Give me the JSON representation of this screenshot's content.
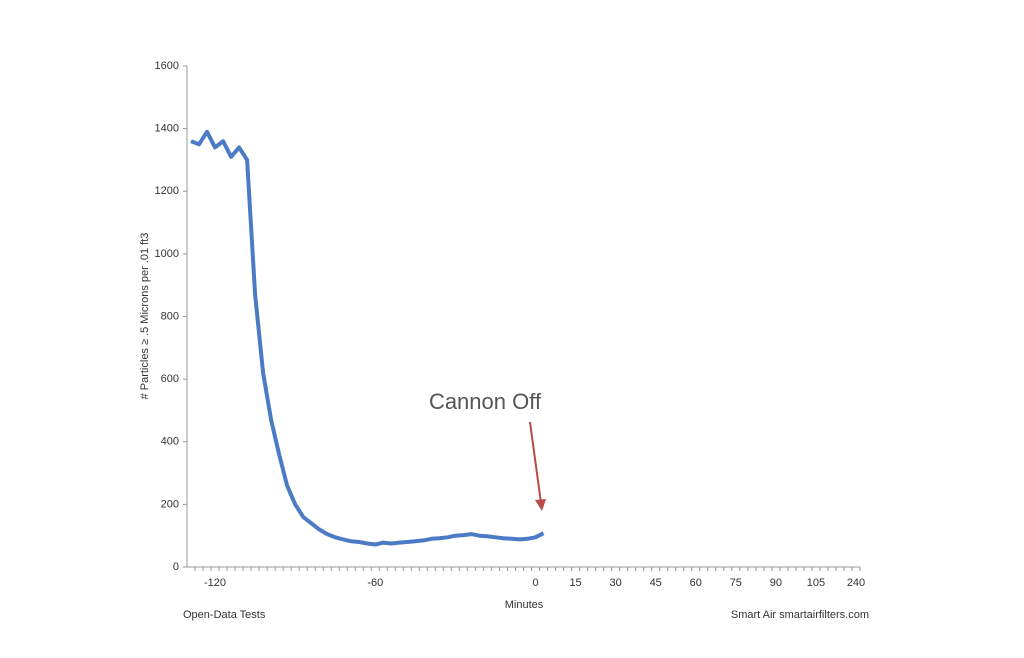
{
  "chart_data": {
    "type": "line",
    "y_label": "# Particles ≥ .5 Microns per .01 ft3",
    "x_label": "Minutes",
    "annotation": "Cannon Off",
    "footer_left": "Open-Data Tests",
    "footer_right": "Smart Air smartairfilters.com",
    "categories": [
      null,
      null,
      null,
      "-120",
      null,
      null,
      null,
      null,
      null,
      null,
      null,
      null,
      null,
      null,
      null,
      null,
      null,
      null,
      null,
      null,
      null,
      null,
      null,
      "-60",
      null,
      null,
      null,
      null,
      null,
      null,
      null,
      null,
      null,
      null,
      null,
      null,
      null,
      null,
      null,
      null,
      null,
      null,
      null,
      "0",
      null,
      null,
      null,
      null,
      "15",
      null,
      null,
      null,
      null,
      "30",
      null,
      null,
      null,
      null,
      "45",
      null,
      null,
      null,
      null,
      "60",
      null,
      null,
      null,
      null,
      "75",
      null,
      null,
      null,
      null,
      "90",
      null,
      null,
      null,
      null,
      "105",
      null,
      null,
      null,
      null,
      "240"
    ],
    "series": [
      {
        "color": "#4a7bc4",
        "values": [
          1360,
          1350,
          1390,
          1340,
          1360,
          1310,
          1340,
          1300,
          870,
          620,
          470,
          360,
          260,
          200,
          160,
          140,
          120,
          105,
          95,
          88,
          82,
          80,
          75,
          72,
          78,
          75,
          78,
          80,
          82,
          85,
          90,
          92,
          95,
          100,
          102,
          105,
          100,
          98,
          95,
          92,
          90,
          88,
          90,
          95,
          108,
          null,
          null,
          null,
          null,
          null,
          null,
          null,
          null,
          null,
          null,
          null,
          null,
          null,
          null,
          null,
          null,
          null,
          null,
          null,
          null,
          null,
          null,
          null,
          null,
          null,
          null,
          null,
          null,
          null,
          null,
          null,
          null,
          null,
          null,
          null,
          null,
          null,
          null,
          null
        ]
      }
    ],
    "ylim": [
      0,
      1600
    ],
    "yticks": [
      0,
      200,
      400,
      600,
      800,
      1000,
      1200,
      1400,
      1600
    ],
    "annotation_color": "#b94a48"
  }
}
